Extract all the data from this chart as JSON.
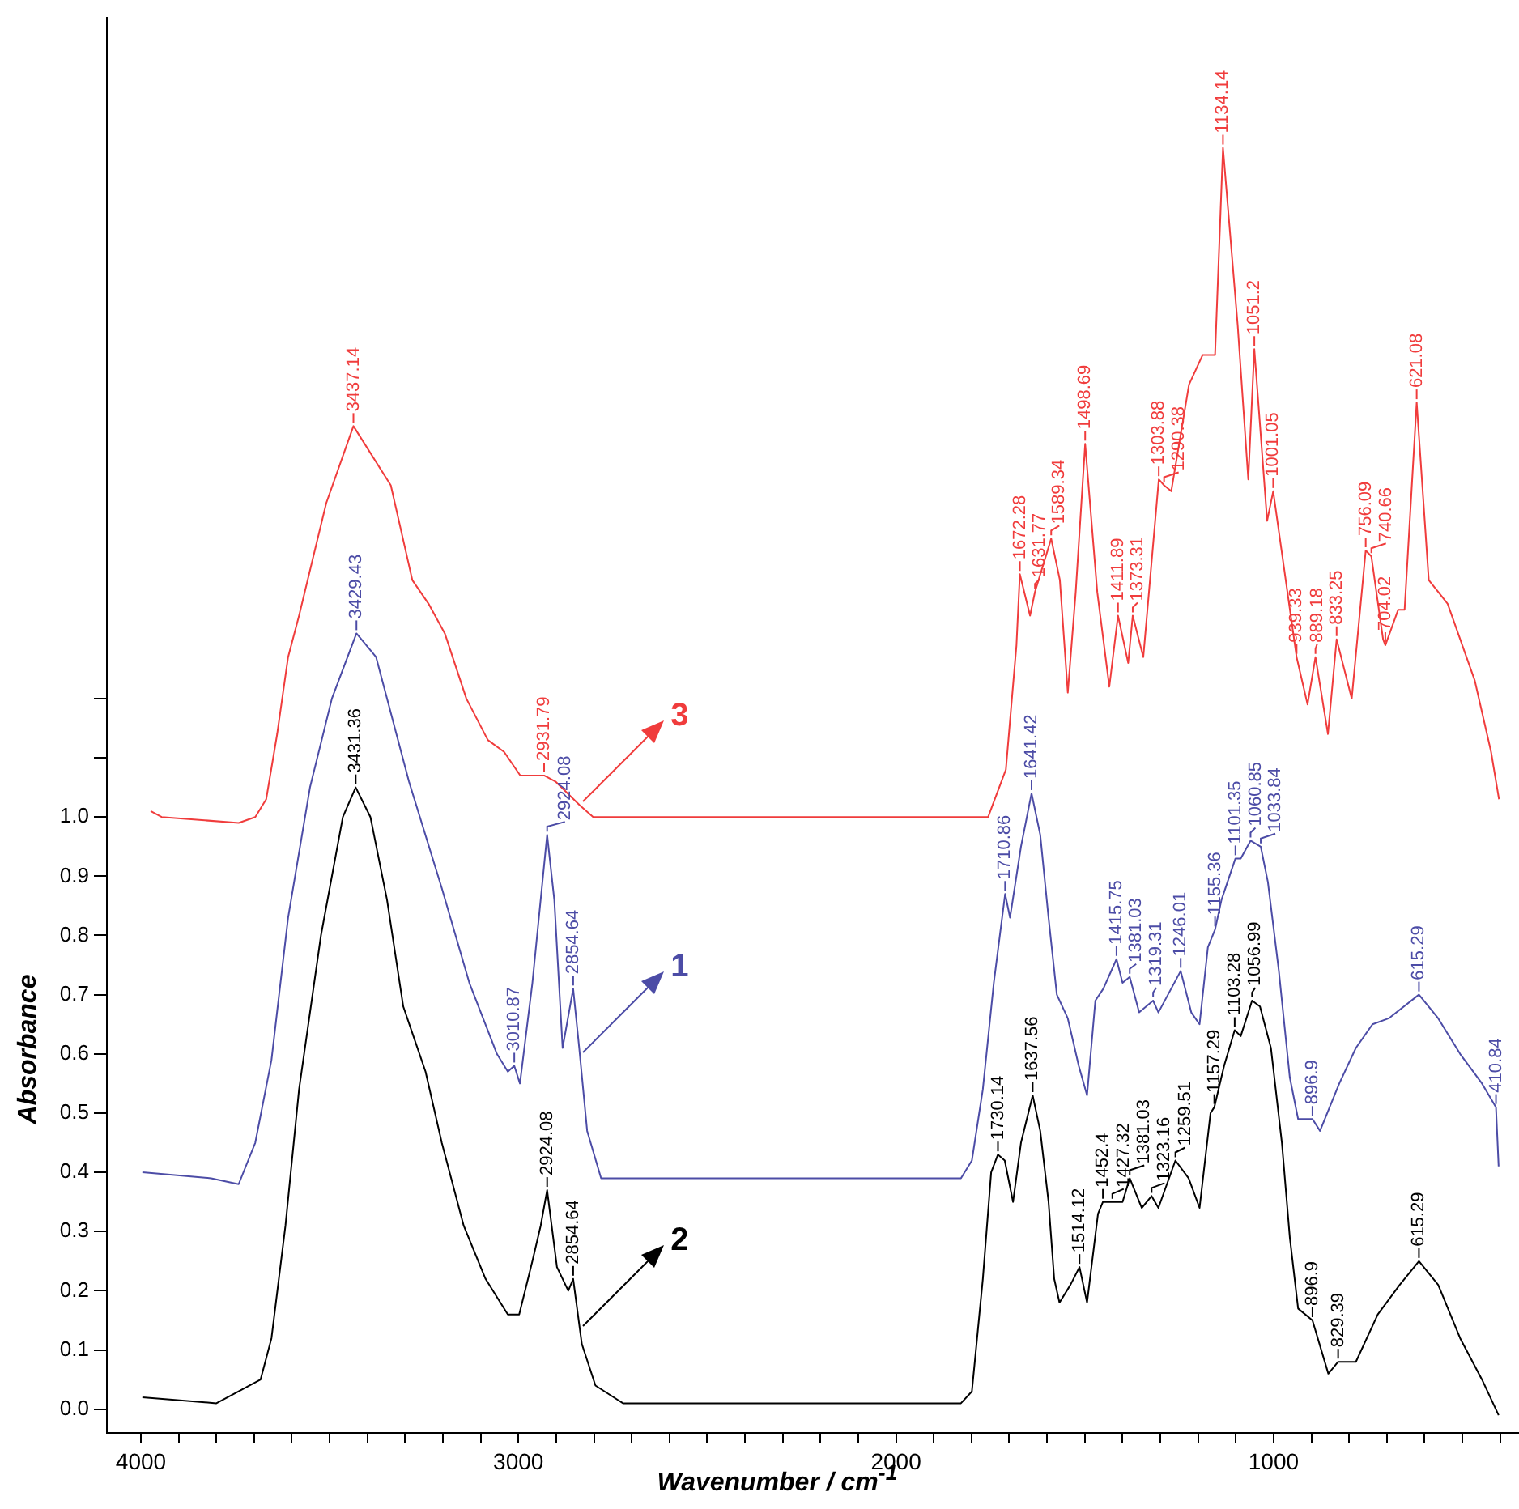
{
  "chart_data": {
    "type": "line",
    "xlabel": "Wavenumber / cm$^{-1}$",
    "ylabel": "Absorbance",
    "xlim": [
      4090,
      350
    ],
    "ylim": [
      -0.04,
      2.35
    ],
    "xticks": [
      4000,
      {
        "value": 3900,
        "label": null
      },
      {
        "value": 3800,
        "label": null
      },
      {
        "value": 3700,
        "label": null
      },
      {
        "value": 3600,
        "label": null
      },
      {
        "value": 3500,
        "label": null
      },
      {
        "value": 3400,
        "label": null
      },
      {
        "value": 3300,
        "label": null
      },
      {
        "value": 3200,
        "label": null
      },
      {
        "value": 3100,
        "label": null
      },
      3000,
      {
        "value": 2900,
        "label": null
      },
      {
        "value": 2800,
        "label": null
      },
      {
        "value": 2700,
        "label": null
      },
      {
        "value": 2600,
        "label": null
      },
      {
        "value": 2500,
        "label": null
      },
      {
        "value": 2400,
        "label": null
      },
      {
        "value": 2300,
        "label": null
      },
      {
        "value": 2200,
        "label": null
      },
      {
        "value": 2100,
        "label": null
      },
      2000,
      {
        "value": 1900,
        "label": null
      },
      {
        "value": 1800,
        "label": null
      },
      {
        "value": 1700,
        "label": null
      },
      {
        "value": 1600,
        "label": null
      },
      {
        "value": 1500,
        "label": null
      },
      {
        "value": 1400,
        "label": null
      },
      {
        "value": 1300,
        "label": null
      },
      {
        "value": 1200,
        "label": null
      },
      {
        "value": 1100,
        "label": null
      },
      1000,
      {
        "value": 900,
        "label": null
      },
      {
        "value": 800,
        "label": null
      },
      {
        "value": 700,
        "label": null
      },
      {
        "value": 600,
        "label": null
      },
      {
        "value": 500,
        "label": null
      },
      {
        "value": 400,
        "label": null
      }
    ],
    "yticks": [
      {
        "value": 0,
        "label": "0.0"
      },
      {
        "value": 0.1,
        "label": "0.1"
      },
      {
        "value": 0.2,
        "label": "0.2"
      },
      {
        "value": 0.3,
        "label": "0.3"
      },
      {
        "value": 0.4,
        "label": "0.4"
      },
      {
        "value": 0.5,
        "label": "0.5"
      },
      {
        "value": 0.6,
        "label": "0.6"
      },
      {
        "value": 0.7,
        "label": "0.7"
      },
      {
        "value": 0.8,
        "label": "0.8"
      },
      {
        "value": 0.9,
        "label": "0.9"
      },
      {
        "value": 1,
        "label": "1.0"
      },
      {
        "value": 1.1,
        "label": null
      },
      {
        "value": 1.2,
        "label": null
      }
    ],
    "grid": false,
    "legend": "left",
    "marker": "none",
    "series": [
      {
        "name": "1",
        "color": "#4c4ca6",
        "x": [
          3996,
          3814,
          3741,
          3697,
          3654,
          3610,
          3552,
          3494,
          3429,
          3377,
          3290,
          3203,
          3130,
          3057,
          3028,
          3011,
          2996,
          2963,
          2924,
          2905,
          2883,
          2855,
          2839,
          2818,
          2781,
          1828,
          1799,
          1770,
          1741,
          1711,
          1698,
          1669,
          1641,
          1618,
          1596,
          1574,
          1545,
          1516,
          1494,
          1472,
          1451,
          1416,
          1400,
          1381,
          1356,
          1319,
          1305,
          1246,
          1218,
          1196,
          1174,
          1155,
          1138,
          1101,
          1087,
          1061,
          1034,
          1015,
          986,
          957,
          935,
          897,
          877,
          826,
          782,
          738,
          695,
          615,
          564,
          506,
          448,
          411,
          404
        ],
        "values": [
          0.4,
          0.39,
          0.38,
          0.45,
          0.59,
          0.83,
          1.05,
          1.2,
          1.31,
          1.27,
          1.06,
          0.88,
          0.72,
          0.6,
          0.57,
          0.58,
          0.55,
          0.72,
          0.97,
          0.86,
          0.61,
          0.71,
          0.61,
          0.47,
          0.39,
          0.39,
          0.42,
          0.54,
          0.72,
          0.87,
          0.83,
          0.95,
          1.04,
          0.97,
          0.83,
          0.7,
          0.66,
          0.58,
          0.53,
          0.69,
          0.71,
          0.76,
          0.72,
          0.73,
          0.67,
          0.69,
          0.67,
          0.74,
          0.67,
          0.65,
          0.78,
          0.81,
          0.86,
          0.93,
          0.93,
          0.96,
          0.95,
          0.89,
          0.74,
          0.56,
          0.49,
          0.49,
          0.47,
          0.55,
          0.61,
          0.65,
          0.66,
          0.7,
          0.66,
          0.6,
          0.55,
          0.51,
          0.41
        ]
      },
      {
        "name": "2",
        "color": "#000000",
        "x": [
          3996,
          3800,
          3683,
          3654,
          3617,
          3581,
          3523,
          3465,
          3431,
          3392,
          3348,
          3305,
          3246,
          3203,
          3145,
          3087,
          3028,
          2998,
          2963,
          2941,
          2924,
          2898,
          2868,
          2855,
          2832,
          2796,
          2723,
          1828,
          1799,
          1770,
          1748,
          1730,
          1712,
          1690,
          1669,
          1638,
          1618,
          1596,
          1581,
          1567,
          1538,
          1514,
          1494,
          1465,
          1452,
          1427,
          1400,
          1381,
          1349,
          1323,
          1305,
          1260,
          1225,
          1196,
          1167,
          1157,
          1131,
          1103,
          1087,
          1057,
          1036,
          1007,
          978,
          957,
          935,
          897,
          855,
          829,
          782,
          724,
          666,
          615,
          564,
          506,
          448,
          404
        ],
        "values": [
          0.02,
          0.01,
          0.05,
          0.12,
          0.31,
          0.54,
          0.8,
          1.0,
          1.05,
          1.0,
          0.86,
          0.68,
          0.57,
          0.45,
          0.31,
          0.22,
          0.16,
          0.16,
          0.25,
          0.31,
          0.37,
          0.24,
          0.2,
          0.22,
          0.11,
          0.04,
          0.01,
          0.01,
          0.03,
          0.22,
          0.4,
          0.43,
          0.42,
          0.35,
          0.45,
          0.53,
          0.47,
          0.35,
          0.22,
          0.18,
          0.21,
          0.24,
          0.18,
          0.33,
          0.35,
          0.35,
          0.35,
          0.39,
          0.34,
          0.36,
          0.34,
          0.42,
          0.39,
          0.34,
          0.5,
          0.51,
          0.58,
          0.64,
          0.63,
          0.69,
          0.68,
          0.61,
          0.45,
          0.29,
          0.17,
          0.15,
          0.06,
          0.08,
          0.08,
          0.16,
          0.21,
          0.25,
          0.21,
          0.12,
          0.05,
          -0.01
        ]
      },
      {
        "name": "3",
        "color": "#f03c3c",
        "x": [
          3974,
          3945,
          3741,
          3697,
          3668,
          3639,
          3610,
          3581,
          3509,
          3437,
          3338,
          3281,
          3238,
          3195,
          3138,
          3081,
          3038,
          2995,
          2932,
          2902,
          2838,
          2802,
          1756,
          1709,
          1681,
          1672,
          1645,
          1632,
          1589,
          1566,
          1545,
          1524,
          1499,
          1467,
          1435,
          1412,
          1385,
          1373,
          1345,
          1304,
          1290,
          1271,
          1224,
          1188,
          1155,
          1134,
          1095,
          1067,
          1051,
          1017,
          1001,
          939,
          910,
          889,
          856,
          833,
          793,
          756,
          741,
          710,
          704,
          670,
          653,
          621,
          589,
          539,
          467,
          424,
          403
        ],
        "values": [
          1.01,
          1.0,
          0.99,
          1.0,
          1.03,
          1.14,
          1.27,
          1.34,
          1.53,
          1.66,
          1.56,
          1.4,
          1.36,
          1.31,
          1.2,
          1.13,
          1.11,
          1.07,
          1.07,
          1.06,
          1.02,
          1.0,
          1.0,
          1.08,
          1.29,
          1.41,
          1.34,
          1.38,
          1.47,
          1.4,
          1.21,
          1.38,
          1.63,
          1.38,
          1.22,
          1.34,
          1.26,
          1.34,
          1.27,
          1.57,
          1.56,
          1.55,
          1.73,
          1.78,
          1.78,
          2.13,
          1.83,
          1.57,
          1.79,
          1.5,
          1.55,
          1.27,
          1.19,
          1.27,
          1.14,
          1.3,
          1.2,
          1.45,
          1.44,
          1.3,
          1.29,
          1.35,
          1.35,
          1.7,
          1.4,
          1.36,
          1.23,
          1.11,
          1.03
        ]
      }
    ],
    "annotations": [
      {
        "text": "3437.14",
        "x": 3437,
        "y": 1.66
      },
      {
        "text": "2931.79",
        "x": 2932,
        "y": 1.07
      },
      {
        "text": "1672.28",
        "x": 1672,
        "y": 1.41
      },
      {
        "text": "1631.77",
        "x": 1632,
        "y": 1.38
      },
      {
        "text": "1589.34",
        "x": 1589,
        "y": 1.47
      },
      {
        "text": "1498.69",
        "x": 1499,
        "y": 1.63
      },
      {
        "text": "1411.89",
        "x": 1412,
        "y": 1.34
      },
      {
        "text": "1373.31",
        "x": 1373,
        "y": 1.34
      },
      {
        "text": "1303.88",
        "x": 1304,
        "y": 1.57
      },
      {
        "text": "1290.38",
        "x": 1290,
        "y": 1.56
      },
      {
        "text": "1134.14",
        "x": 1134,
        "y": 2.13
      },
      {
        "text": "1051.2",
        "x": 1051,
        "y": 1.79
      },
      {
        "text": "1001.05",
        "x": 1001,
        "y": 1.55
      },
      {
        "text": "939.33",
        "x": 939,
        "y": 1.27
      },
      {
        "text": "889.18",
        "x": 889,
        "y": 1.27
      },
      {
        "text": "833.25",
        "x": 833,
        "y": 1.3
      },
      {
        "text": "756.09",
        "x": 756,
        "y": 1.45
      },
      {
        "text": "740.66",
        "x": 741,
        "y": 1.44
      },
      {
        "text": "704.02",
        "x": 704,
        "y": 1.29
      },
      {
        "text": "621.08",
        "x": 621,
        "y": 1.7
      },
      {
        "text": "3429.43",
        "x": 3429,
        "y": 1.31
      },
      {
        "text": "3010.87",
        "x": 3011,
        "y": 0.58
      },
      {
        "text": "2924.08",
        "x": 2924,
        "y": 0.97
      },
      {
        "text": "2854.64",
        "x": 2855,
        "y": 0.71
      },
      {
        "text": "1710.86",
        "x": 1711,
        "y": 0.87
      },
      {
        "text": "1641.42",
        "x": 1641,
        "y": 1.04
      },
      {
        "text": "1415.75",
        "x": 1416,
        "y": 0.76
      },
      {
        "text": "1381.03",
        "x": 1381,
        "y": 0.73
      },
      {
        "text": "1319.31",
        "x": 1319,
        "y": 0.69
      },
      {
        "text": "1246.01",
        "x": 1246,
        "y": 0.74
      },
      {
        "text": "1155.36",
        "x": 1155,
        "y": 0.81
      },
      {
        "text": "1101.35",
        "x": 1101,
        "y": 0.93
      },
      {
        "text": "1060.85",
        "x": 1061,
        "y": 0.96
      },
      {
        "text": "1033.84",
        "x": 1034,
        "y": 0.95
      },
      {
        "text": "896.9",
        "x": 897,
        "y": 0.49
      },
      {
        "text": "615.29",
        "x": 615,
        "y": 0.7
      },
      {
        "text": "410.84",
        "x": 411,
        "y": 0.51
      },
      {
        "text": "3431.36",
        "x": 3431,
        "y": 1.05
      },
      {
        "text": "2924.08",
        "x": 2924,
        "y": 0.37
      },
      {
        "text": "2854.64",
        "x": 2855,
        "y": 0.22
      },
      {
        "text": "1730.14",
        "x": 1730,
        "y": 0.43
      },
      {
        "text": "1637.56",
        "x": 1638,
        "y": 0.53
      },
      {
        "text": "1514.12",
        "x": 1514,
        "y": 0.24
      },
      {
        "text": "1452.4",
        "x": 1452,
        "y": 0.35
      },
      {
        "text": "1427.32",
        "x": 1427,
        "y": 0.35
      },
      {
        "text": "1381.03",
        "x": 1381,
        "y": 0.39
      },
      {
        "text": "1323.16",
        "x": 1323,
        "y": 0.36
      },
      {
        "text": "1259.51",
        "x": 1260,
        "y": 0.42
      },
      {
        "text": "1157.29",
        "x": 1157,
        "y": 0.51
      },
      {
        "text": "1103.28",
        "x": 1103,
        "y": 0.64
      },
      {
        "text": "1056.99",
        "x": 1057,
        "y": 0.69
      },
      {
        "text": "896.9",
        "x": 897,
        "y": 0.15
      },
      {
        "text": "829.39",
        "x": 829,
        "y": 0.08
      },
      {
        "text": "615.29",
        "x": 615,
        "y": 0.25
      }
    ]
  }
}
